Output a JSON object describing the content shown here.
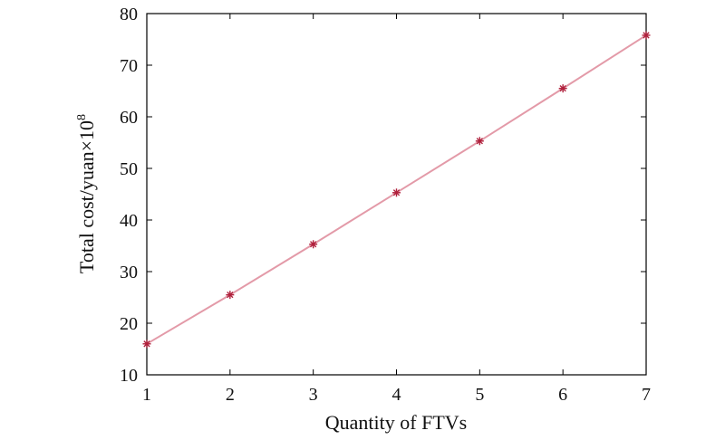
{
  "chart_data": {
    "type": "line",
    "title": "",
    "xlabel": "Quantity of FTVs",
    "ylabel": "Total cost/yuan×10",
    "ylabel_superscript": "8",
    "x": [
      1,
      2,
      3,
      4,
      5,
      6,
      7
    ],
    "series": [
      {
        "values": [
          16,
          25.5,
          35.3,
          45.3,
          55.3,
          65.5,
          75.8
        ]
      }
    ],
    "xlim": [
      1,
      7
    ],
    "ylim": [
      10,
      80
    ],
    "xticks": [
      "1",
      "2",
      "3",
      "4",
      "5",
      "6",
      "7"
    ],
    "yticks": [
      "10",
      "20",
      "30",
      "40",
      "50",
      "60",
      "70",
      "80"
    ],
    "grid": false,
    "legend": "none",
    "colors": {
      "line": "#e39aa8",
      "marker": "#b0203c",
      "axis": "#000000"
    }
  }
}
